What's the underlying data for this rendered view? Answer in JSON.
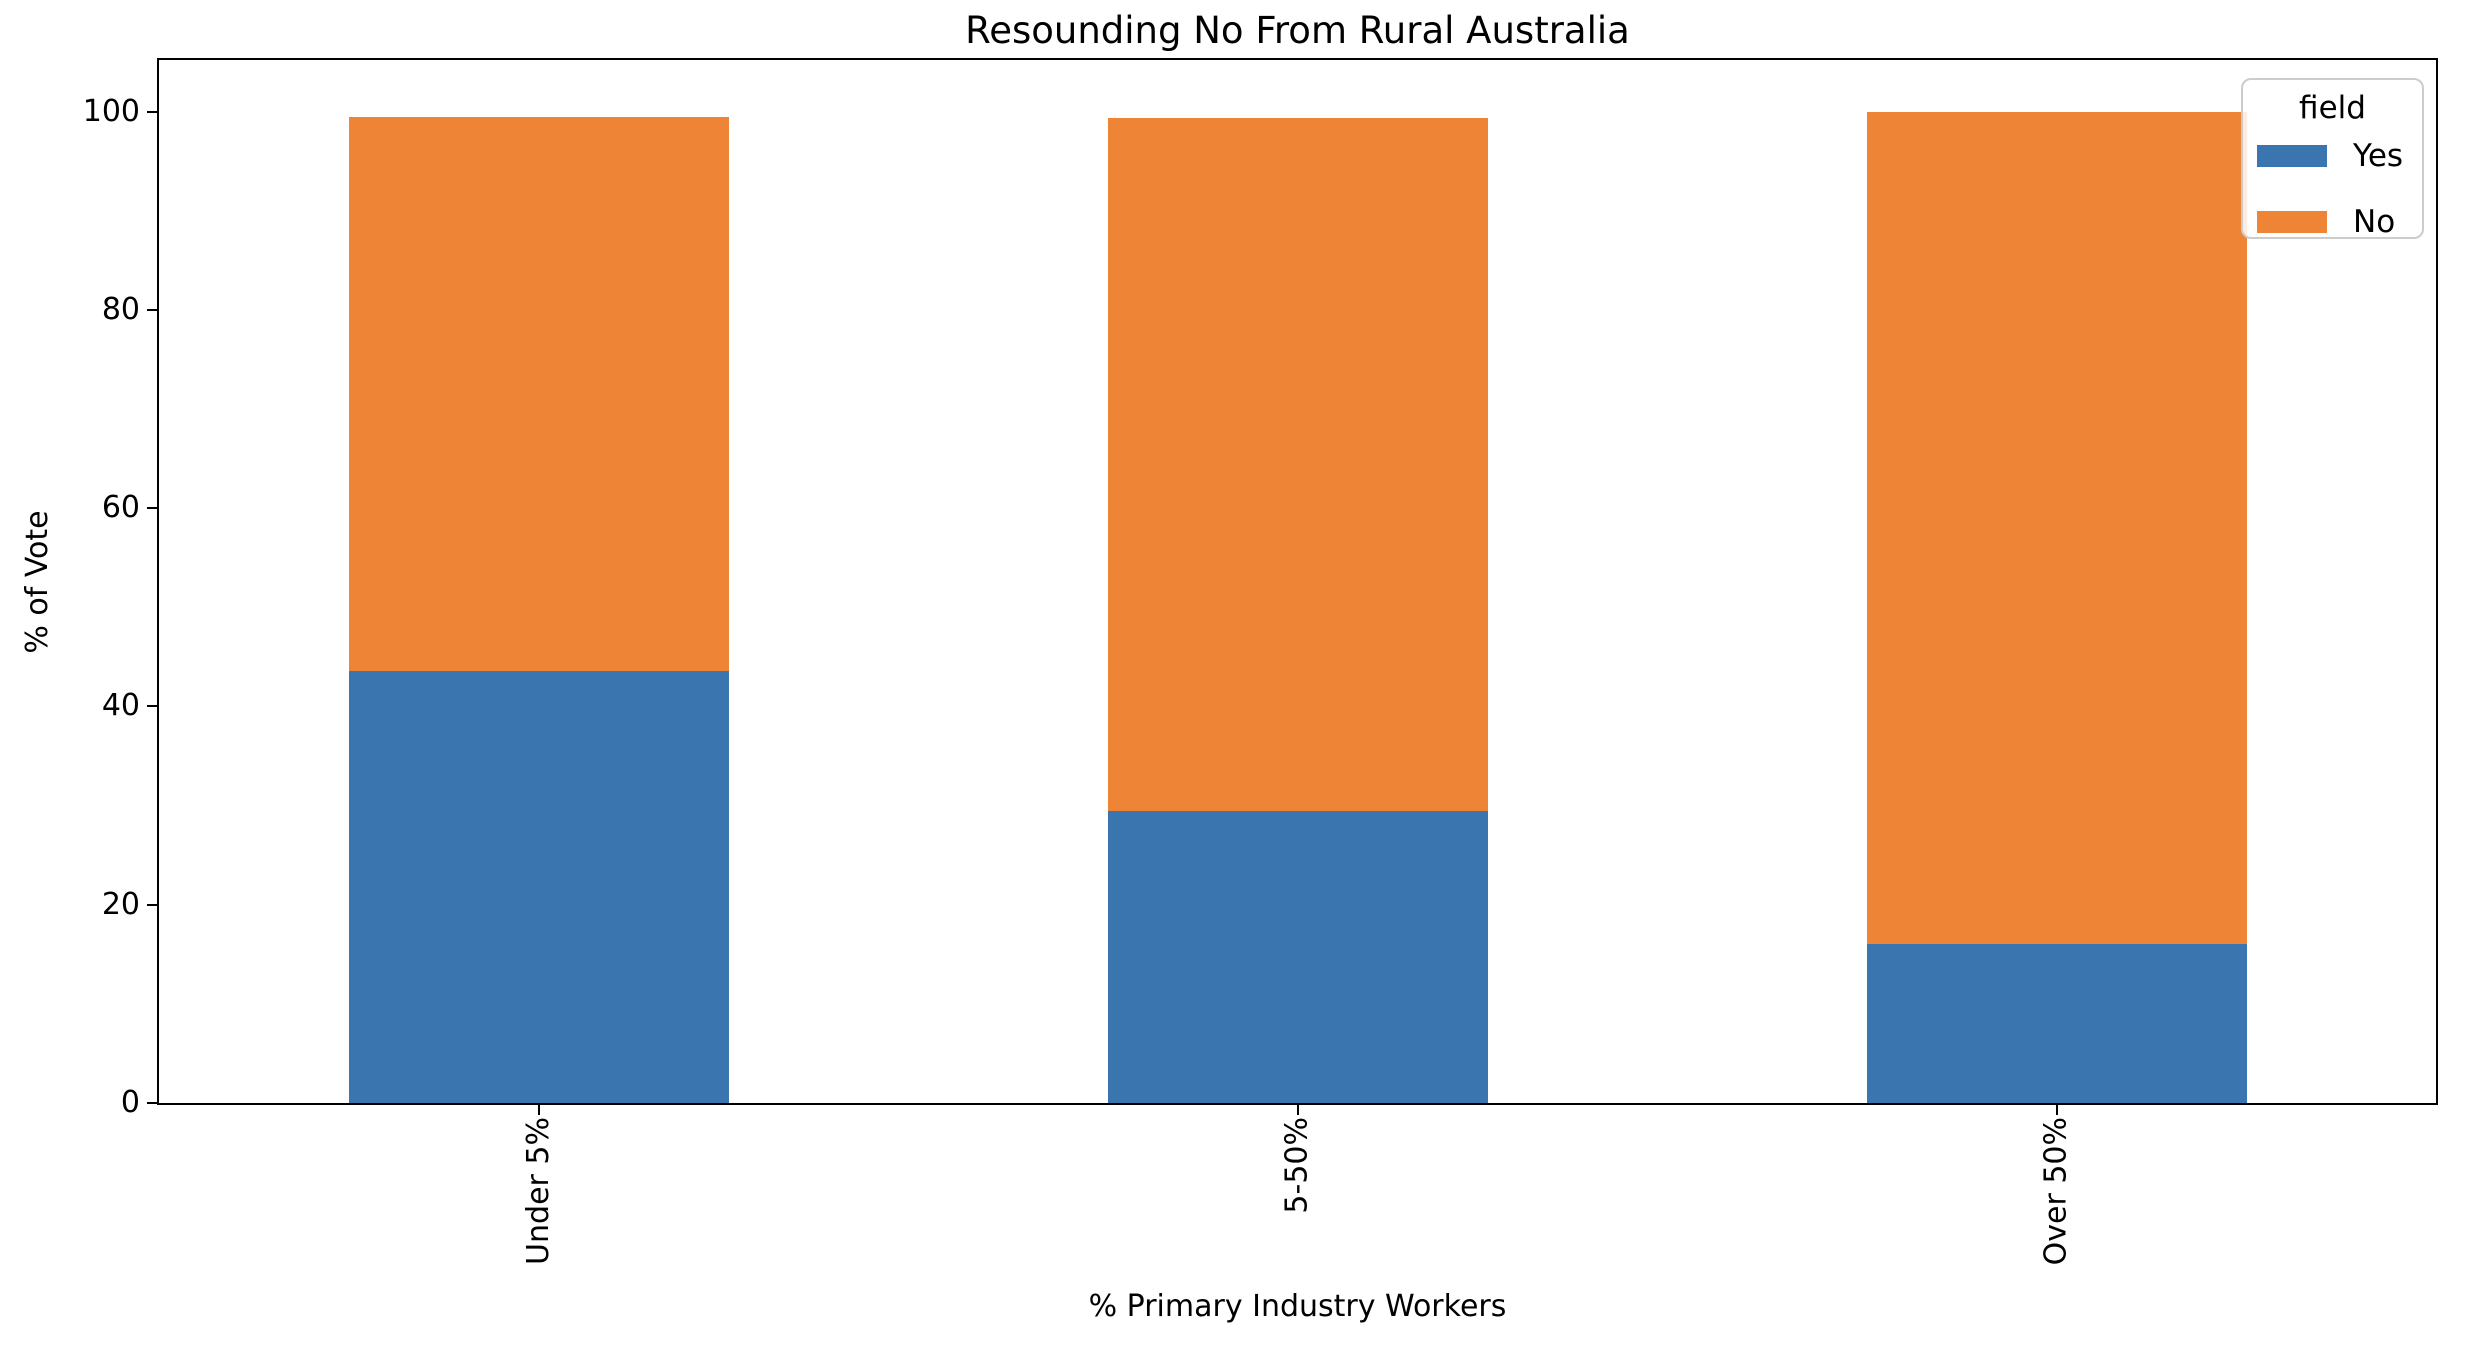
{
  "chart_data": {
    "type": "bar",
    "stacked": true,
    "title": "Resounding No From Rural Australia",
    "xlabel": "% Primary Industry Workers",
    "ylabel": "% of Vote",
    "categories": [
      "Under 5%",
      "5-50%",
      "Over 50%"
    ],
    "series": [
      {
        "name": "Yes",
        "color": "#3B75AF",
        "values": [
          43.6,
          29.5,
          16.0
        ]
      },
      {
        "name": "No",
        "color": "#EE8435",
        "values": [
          55.9,
          69.9,
          84.0
        ]
      }
    ],
    "stack_totals": [
      99.5,
      99.4,
      100.0
    ],
    "yticks": [
      0,
      20,
      40,
      60,
      80,
      100
    ],
    "ylim": [
      0,
      105.2
    ],
    "grid": false,
    "legend": {
      "title": "field",
      "position": "upper right"
    },
    "xtick_rotation_deg": 90,
    "bar_width_fraction": 0.5,
    "accent_colors": {
      "yes_blue": "#3B75AF",
      "no_orange": "#EE8435"
    }
  }
}
